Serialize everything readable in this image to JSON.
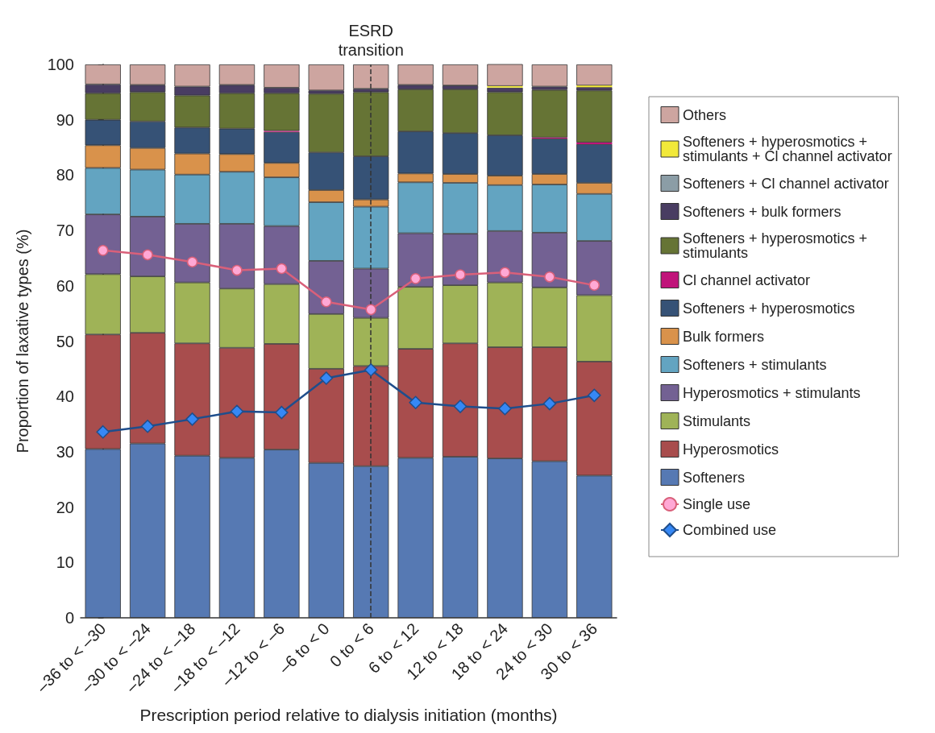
{
  "chart_data": {
    "type": "bar",
    "stacked": true,
    "xlabel": "Prescription period relative to dialysis initiation (months)",
    "ylabel": "Proportion of laxative types (%)",
    "categories": [
      "–36 to < –30",
      "–30 to < –24",
      "–24 to < –18",
      "–18 to < –12",
      "–12 to < –6",
      "–6 to < 0",
      "0 to < 6",
      "6 to < 12",
      "12 to < 18",
      "18 to < 24",
      "24 to < 30",
      "30 to < 36"
    ],
    "ylim": [
      0,
      100
    ],
    "yticks": [
      0,
      10,
      20,
      30,
      40,
      50,
      60,
      70,
      80,
      90,
      100
    ],
    "grid": false,
    "legend": "right",
    "ref_lines": [
      {
        "axis": "x",
        "value": "0 to < 6",
        "label": "ESRD transition",
        "line_style": "dashed",
        "color": "#333333"
      }
    ],
    "series": [
      {
        "name": "Softeners",
        "color": "#5679b3",
        "values": [
          30.5,
          31.5,
          29.3,
          28.9,
          30.4,
          28.0,
          27.4,
          28.9,
          29.1,
          28.8,
          28.3,
          25.7
        ]
      },
      {
        "name": "Hyperosmotics",
        "color": "#a84d4d",
        "values": [
          20.7,
          20.0,
          20.3,
          19.9,
          19.1,
          17.0,
          18.1,
          19.7,
          20.5,
          20.1,
          20.6,
          20.6
        ]
      },
      {
        "name": "Stimulants",
        "color": "#9fb357",
        "values": [
          10.9,
          10.2,
          11.0,
          10.7,
          10.8,
          9.9,
          8.7,
          11.2,
          10.5,
          11.7,
          10.8,
          12.0
        ]
      },
      {
        "name": "Hyperosmotics + stimulants",
        "color": "#736193",
        "values": [
          10.8,
          10.8,
          10.6,
          11.7,
          10.5,
          9.6,
          8.9,
          9.7,
          9.3,
          9.3,
          9.9,
          9.8
        ]
      },
      {
        "name": "Softeners + stimulants",
        "color": "#63a4c1",
        "values": [
          8.4,
          8.5,
          8.9,
          9.4,
          8.8,
          10.6,
          11.2,
          9.2,
          9.2,
          8.3,
          8.7,
          8.5
        ]
      },
      {
        "name": "Bulk formers",
        "color": "#d9924b",
        "values": [
          4.1,
          3.9,
          3.8,
          3.2,
          2.6,
          2.2,
          1.3,
          1.6,
          1.6,
          1.7,
          1.9,
          2.0
        ]
      },
      {
        "name": "Softeners + hyperosmotics",
        "color": "#365276",
        "values": [
          4.6,
          4.8,
          4.7,
          4.6,
          5.6,
          6.8,
          7.8,
          7.6,
          7.4,
          7.3,
          6.4,
          7.0
        ]
      },
      {
        "name": "Cl channel activator",
        "color": "#c0147a",
        "values": [
          0,
          0,
          0,
          0,
          0.2,
          0,
          0,
          0,
          0,
          0,
          0.2,
          0.3
        ]
      },
      {
        "name": "Softeners + hyperosmotics + stimulants",
        "color": "#667435",
        "values": [
          4.8,
          5.3,
          5.8,
          6.4,
          6.8,
          10.6,
          11.6,
          7.6,
          7.9,
          7.8,
          8.6,
          9.4
        ]
      },
      {
        "name": "Softeners + bulk formers",
        "color": "#493d62",
        "values": [
          1.6,
          1.3,
          1.6,
          1.5,
          1.0,
          0.6,
          0.6,
          0.8,
          0.7,
          0.8,
          0.6,
          0.6
        ]
      },
      {
        "name": "Softeners + Cl channel activator",
        "color": "#8b9da6",
        "values": [
          0,
          0,
          0,
          0,
          0,
          0,
          0,
          0,
          0,
          0,
          0,
          0
        ]
      },
      {
        "name": "Softeners + hyperosmotics + stimulants + Cl channel activator",
        "color": "#f2e93a",
        "values": [
          0,
          0,
          0,
          0,
          0,
          0,
          0,
          0,
          0,
          0.3,
          0,
          0.3
        ]
      },
      {
        "name": "Others",
        "color": "#cda5a0",
        "values": [
          3.6,
          3.7,
          4.0,
          3.7,
          4.2,
          4.7,
          4.4,
          3.7,
          3.8,
          4.0,
          4.0,
          3.8
        ]
      },
      {
        "name": "Single use",
        "type": "line",
        "color": "#d9607a",
        "marker": "circle",
        "line_style": "solid",
        "values": [
          66.4,
          65.6,
          64.3,
          62.8,
          63.1,
          57.1,
          55.7,
          61.3,
          62.0,
          62.4,
          61.6,
          60.1
        ]
      },
      {
        "name": "Combined use",
        "type": "line",
        "color": "#1f4e8c",
        "marker": "diamond",
        "line_style": "solid",
        "values": [
          33.6,
          34.6,
          35.9,
          37.3,
          37.1,
          43.3,
          44.8,
          38.9,
          38.2,
          37.8,
          38.7,
          40.2
        ]
      }
    ]
  }
}
